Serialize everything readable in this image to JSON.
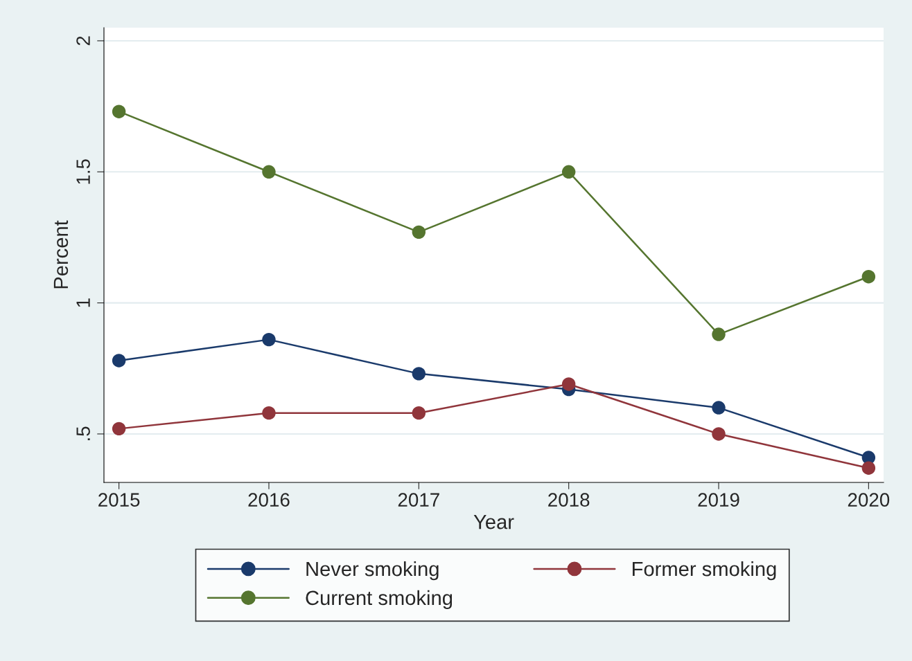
{
  "chart_data": {
    "type": "line",
    "xlabel": "Year",
    "ylabel": "Percent",
    "x": [
      2015,
      2016,
      2017,
      2018,
      2019,
      2020
    ],
    "series": [
      {
        "name": "Never smoking",
        "color": "#1a3a6b",
        "values": [
          0.78,
          0.86,
          0.73,
          0.67,
          0.6,
          0.41
        ]
      },
      {
        "name": "Former smoking",
        "color": "#90353b",
        "values": [
          0.52,
          0.58,
          0.58,
          0.69,
          0.5,
          0.37
        ]
      },
      {
        "name": "Current smoking",
        "color": "#55752f",
        "values": [
          1.73,
          1.5,
          1.27,
          1.5,
          0.88,
          1.1
        ]
      }
    ],
    "xlim": [
      2014.9,
      2020.1
    ],
    "xticks": [
      2015,
      2016,
      2017,
      2018,
      2019,
      2020
    ],
    "ylim": [
      0.315,
      2.05
    ],
    "yticks": [
      {
        "value": 0.5,
        "label": ".5"
      },
      1,
      1.5,
      2
    ],
    "grid": "y",
    "legend": "bottom",
    "marker": "circle",
    "line_style": "solid"
  }
}
